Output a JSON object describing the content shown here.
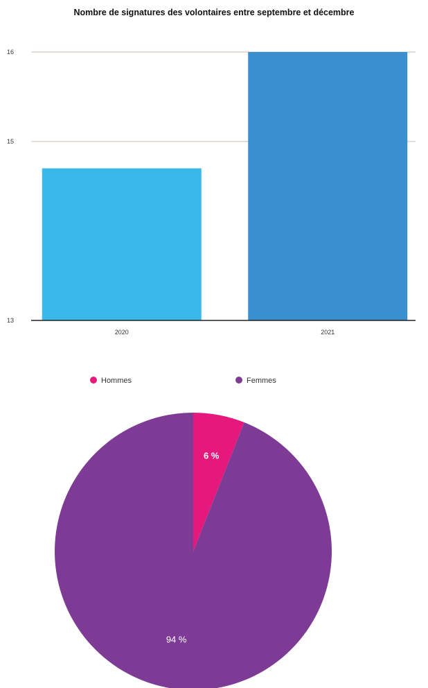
{
  "chart_data": [
    {
      "type": "bar",
      "title": "Nombre de signatures des volontaires entre septembre et décembre",
      "xlabel": "",
      "ylabel": "",
      "categories": [
        "2020",
        "2021"
      ],
      "values": [
        14.7,
        16
      ],
      "ylim": [
        13,
        16
      ],
      "yticks": [
        "13",
        "15",
        "16"
      ],
      "colors": [
        "#39b8ea",
        "#3a8fcf"
      ],
      "grid": true,
      "legend": "none"
    },
    {
      "type": "pie",
      "labels": [
        "Hommes",
        "Femmes"
      ],
      "values": [
        6,
        94
      ],
      "value_labels": [
        "6 %",
        "94 %"
      ],
      "colors": [
        "#e5197c",
        "#7e3b96"
      ],
      "legend": "top",
      "start": "12 o'clock",
      "direction": "clockwise"
    }
  ]
}
